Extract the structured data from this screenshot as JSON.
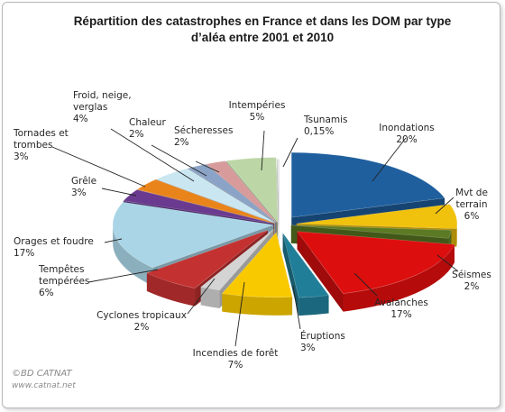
{
  "chart_data": {
    "type": "pie",
    "title_lines": [
      "Répartition des catastrophes   en France et dans les DOM par type",
      "d’aléa entre 2001  et 2010"
    ],
    "slices": [
      {
        "label_lines": [
          "Inondations",
          "20%"
        ],
        "value": 20,
        "color": "#1f5f9e"
      },
      {
        "label_lines": [
          "Mvt de",
          "terrain",
          "6%"
        ],
        "value": 6,
        "color": "#f0c20d"
      },
      {
        "label_lines": [
          "Séismes",
          "2%"
        ],
        "value": 2,
        "color": "#5b7a23"
      },
      {
        "label_lines": [
          "Avalanches",
          "17%"
        ],
        "value": 17,
        "color": "#dd0e0e"
      },
      {
        "label_lines": [
          "Éruptions",
          "3%"
        ],
        "value": 3,
        "color": "#217e98"
      },
      {
        "label_lines": [
          "Incendies de forêt",
          "7%"
        ],
        "value": 7,
        "color": "#f9c900"
      },
      {
        "label_lines": [
          "Cyclones tropicaux",
          "2%"
        ],
        "value": 2,
        "color": "#d4d4d4"
      },
      {
        "label_lines": [
          "Tempêtes",
          "tempérées",
          "6%"
        ],
        "value": 6,
        "color": "#c43131"
      },
      {
        "label_lines": [
          "Orages et foudre",
          "17%"
        ],
        "value": 17,
        "color": "#a9d5e6"
      },
      {
        "label_lines": [
          "Grêle",
          "3%"
        ],
        "value": 3,
        "color": "#6a3a90"
      },
      {
        "label_lines": [
          "Tornades et",
          "trombes",
          "3%"
        ],
        "value": 3,
        "color": "#e9841b"
      },
      {
        "label_lines": [
          "Froid, neige,",
          "verglas",
          "4%"
        ],
        "value": 4,
        "color": "#cae6f1"
      },
      {
        "label_lines": [
          "Chaleur",
          "2%"
        ],
        "value": 2,
        "color": "#8ba3c6"
      },
      {
        "label_lines": [
          "Sécheresses",
          "2%"
        ],
        "value": 2,
        "color": "#d89b9b"
      },
      {
        "label_lines": [
          "Intempéries",
          "5%"
        ],
        "value": 5,
        "color": "#bdd6a6"
      },
      {
        "label_lines": [
          "Tsunamis",
          "0,15%"
        ],
        "value": 0.15,
        "color": "#ffffff"
      }
    ]
  },
  "credits": {
    "source": "©BD CATNAT",
    "url": "www.catnat.net"
  }
}
